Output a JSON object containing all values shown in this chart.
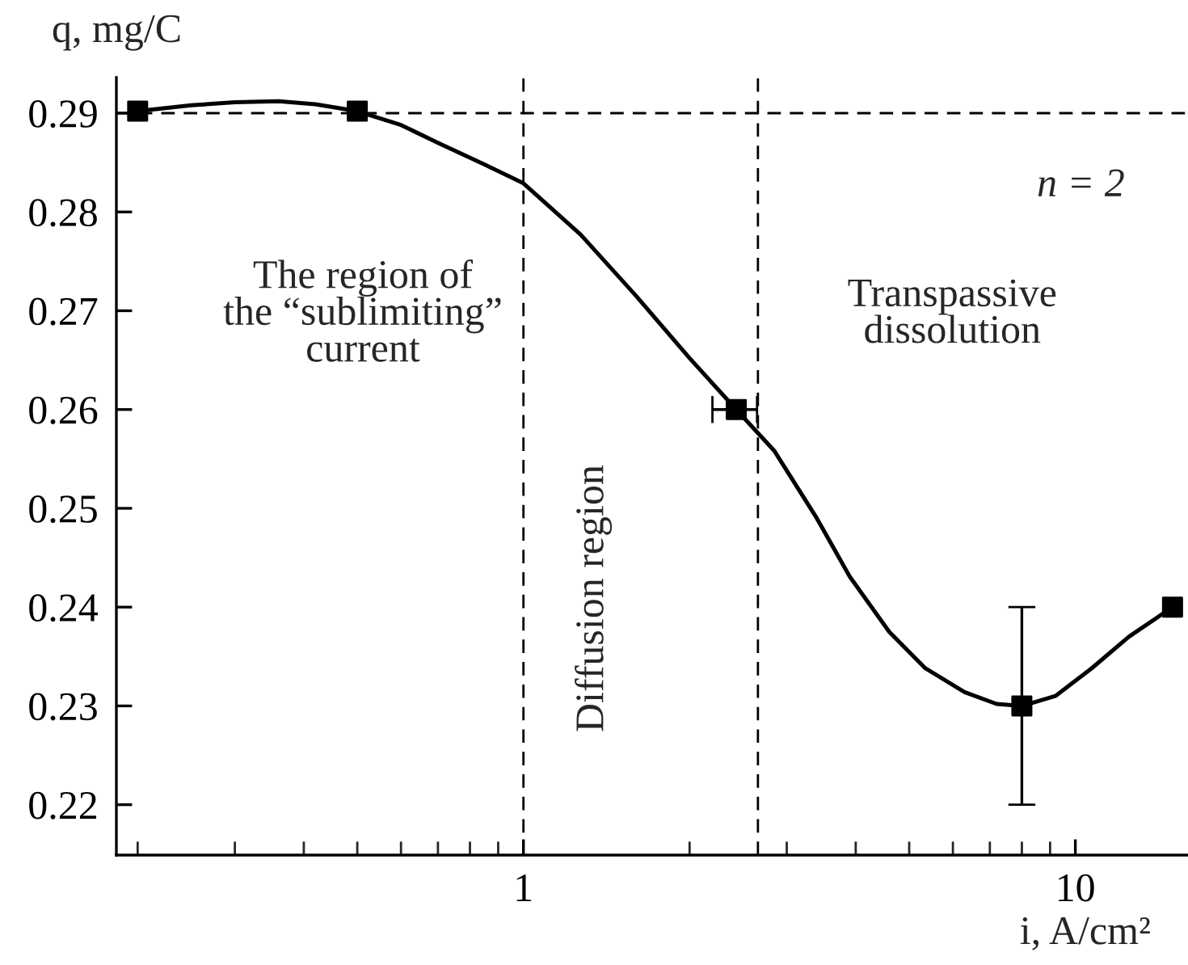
{
  "chart_data": {
    "type": "scatter",
    "xlabel": "i, A/cm²",
    "ylabel": "q, mg/C",
    "log": "x",
    "xlim": [
      0.183,
      16
    ],
    "xticks": [
      1,
      10
    ],
    "ylim": [
      0.2149,
      0.2936
    ],
    "yticks": [
      0.22,
      0.23,
      0.24,
      0.25,
      0.26,
      0.27,
      0.28,
      0.29
    ],
    "grid": false,
    "series": [
      {
        "type": "line",
        "color": "#000000",
        "marker": "none",
        "line_style": "solid",
        "x": [
          0.2,
          0.25,
          0.3,
          0.36,
          0.42,
          0.5,
          0.6,
          0.7,
          0.85,
          1,
          1.27,
          1.6,
          2.0,
          2.43,
          2.85,
          3.4,
          3.9,
          4.6,
          5.35,
          6.3,
          7.2,
          8,
          9.2,
          10.7,
          12.5,
          15
        ],
        "values": [
          0.2902,
          0.2908,
          0.2911,
          0.2912,
          0.2909,
          0.2902,
          0.2888,
          0.287,
          0.2848,
          0.2829,
          0.2777,
          0.2715,
          0.2652,
          0.26,
          0.2558,
          0.249,
          0.2431,
          0.2375,
          0.2338,
          0.2314,
          0.2302,
          0.23,
          0.231,
          0.2338,
          0.237,
          0.24
        ]
      },
      {
        "color": "#000000",
        "marker": "square",
        "x": [
          0.2,
          0.5,
          2.43,
          8,
          15
        ],
        "values": [
          0.2902,
          0.2902,
          0.26,
          0.23,
          0.24
        ],
        "errors": [
          null,
          null,
          null,
          [
            0.22,
            0.24
          ],
          null
        ],
        "xerrors": [
          null,
          null,
          [
            2.2,
            2.65
          ],
          null,
          null
        ]
      }
    ],
    "ref_lines": [
      {
        "axis": "y",
        "value": 0.29,
        "line_style": "dashed",
        "color": "#000000"
      },
      {
        "axis": "x",
        "value": 1,
        "line_style": "dashed",
        "color": "#000000"
      },
      {
        "axis": "x",
        "value": 2.66,
        "line_style": "dashed",
        "color": "#000000"
      }
    ],
    "annotations": [
      "The region of\nthe “sublimiting”\ncurrent",
      "Diffusion region",
      "Transpassive\ndissolution",
      "n = 2"
    ]
  }
}
